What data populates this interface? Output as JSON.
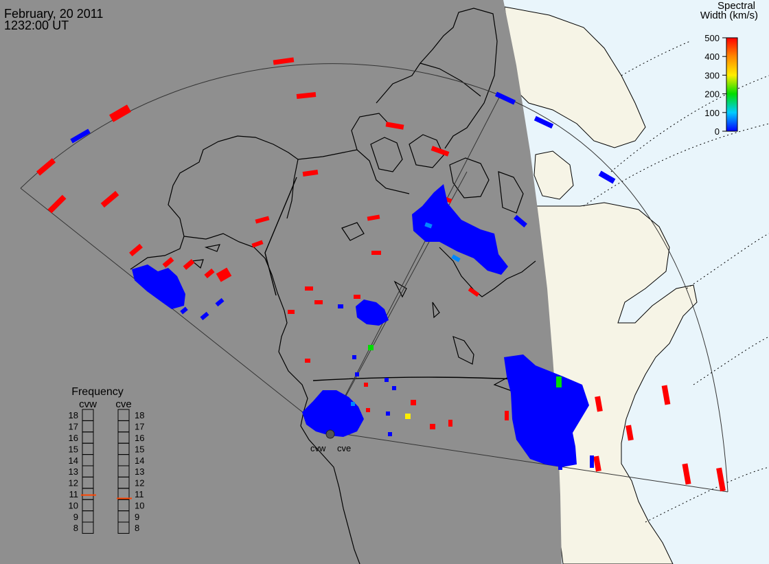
{
  "header": {
    "date": "February, 20 2011",
    "time": "1232:00 UT"
  },
  "legend": {
    "title_line1": "Spectral",
    "title_line2": "Width (km/s)",
    "ticks": [
      "500",
      "400",
      "300",
      "200",
      "100",
      "0"
    ],
    "min": 0,
    "max": 500
  },
  "frequency": {
    "title": "Frequency",
    "radars": [
      {
        "name": "cvw",
        "value": 10.9
      },
      {
        "name": "cve",
        "value": 10.6
      }
    ],
    "scale": [
      "18",
      "17",
      "16",
      "15",
      "14",
      "13",
      "12",
      "11",
      "10",
      "9",
      "8"
    ],
    "scale_min": 8,
    "scale_max": 18
  },
  "radar_sites": [
    {
      "label": "cvw"
    },
    {
      "label": "cve"
    }
  ],
  "colors": {
    "night": "#8f8f8f",
    "land_day": "#f6f4e6",
    "ocean_day": "#e9f5fb",
    "scale_red": "#ff0000",
    "scale_blue": "#0000ff",
    "marker": "#ff4400"
  }
}
